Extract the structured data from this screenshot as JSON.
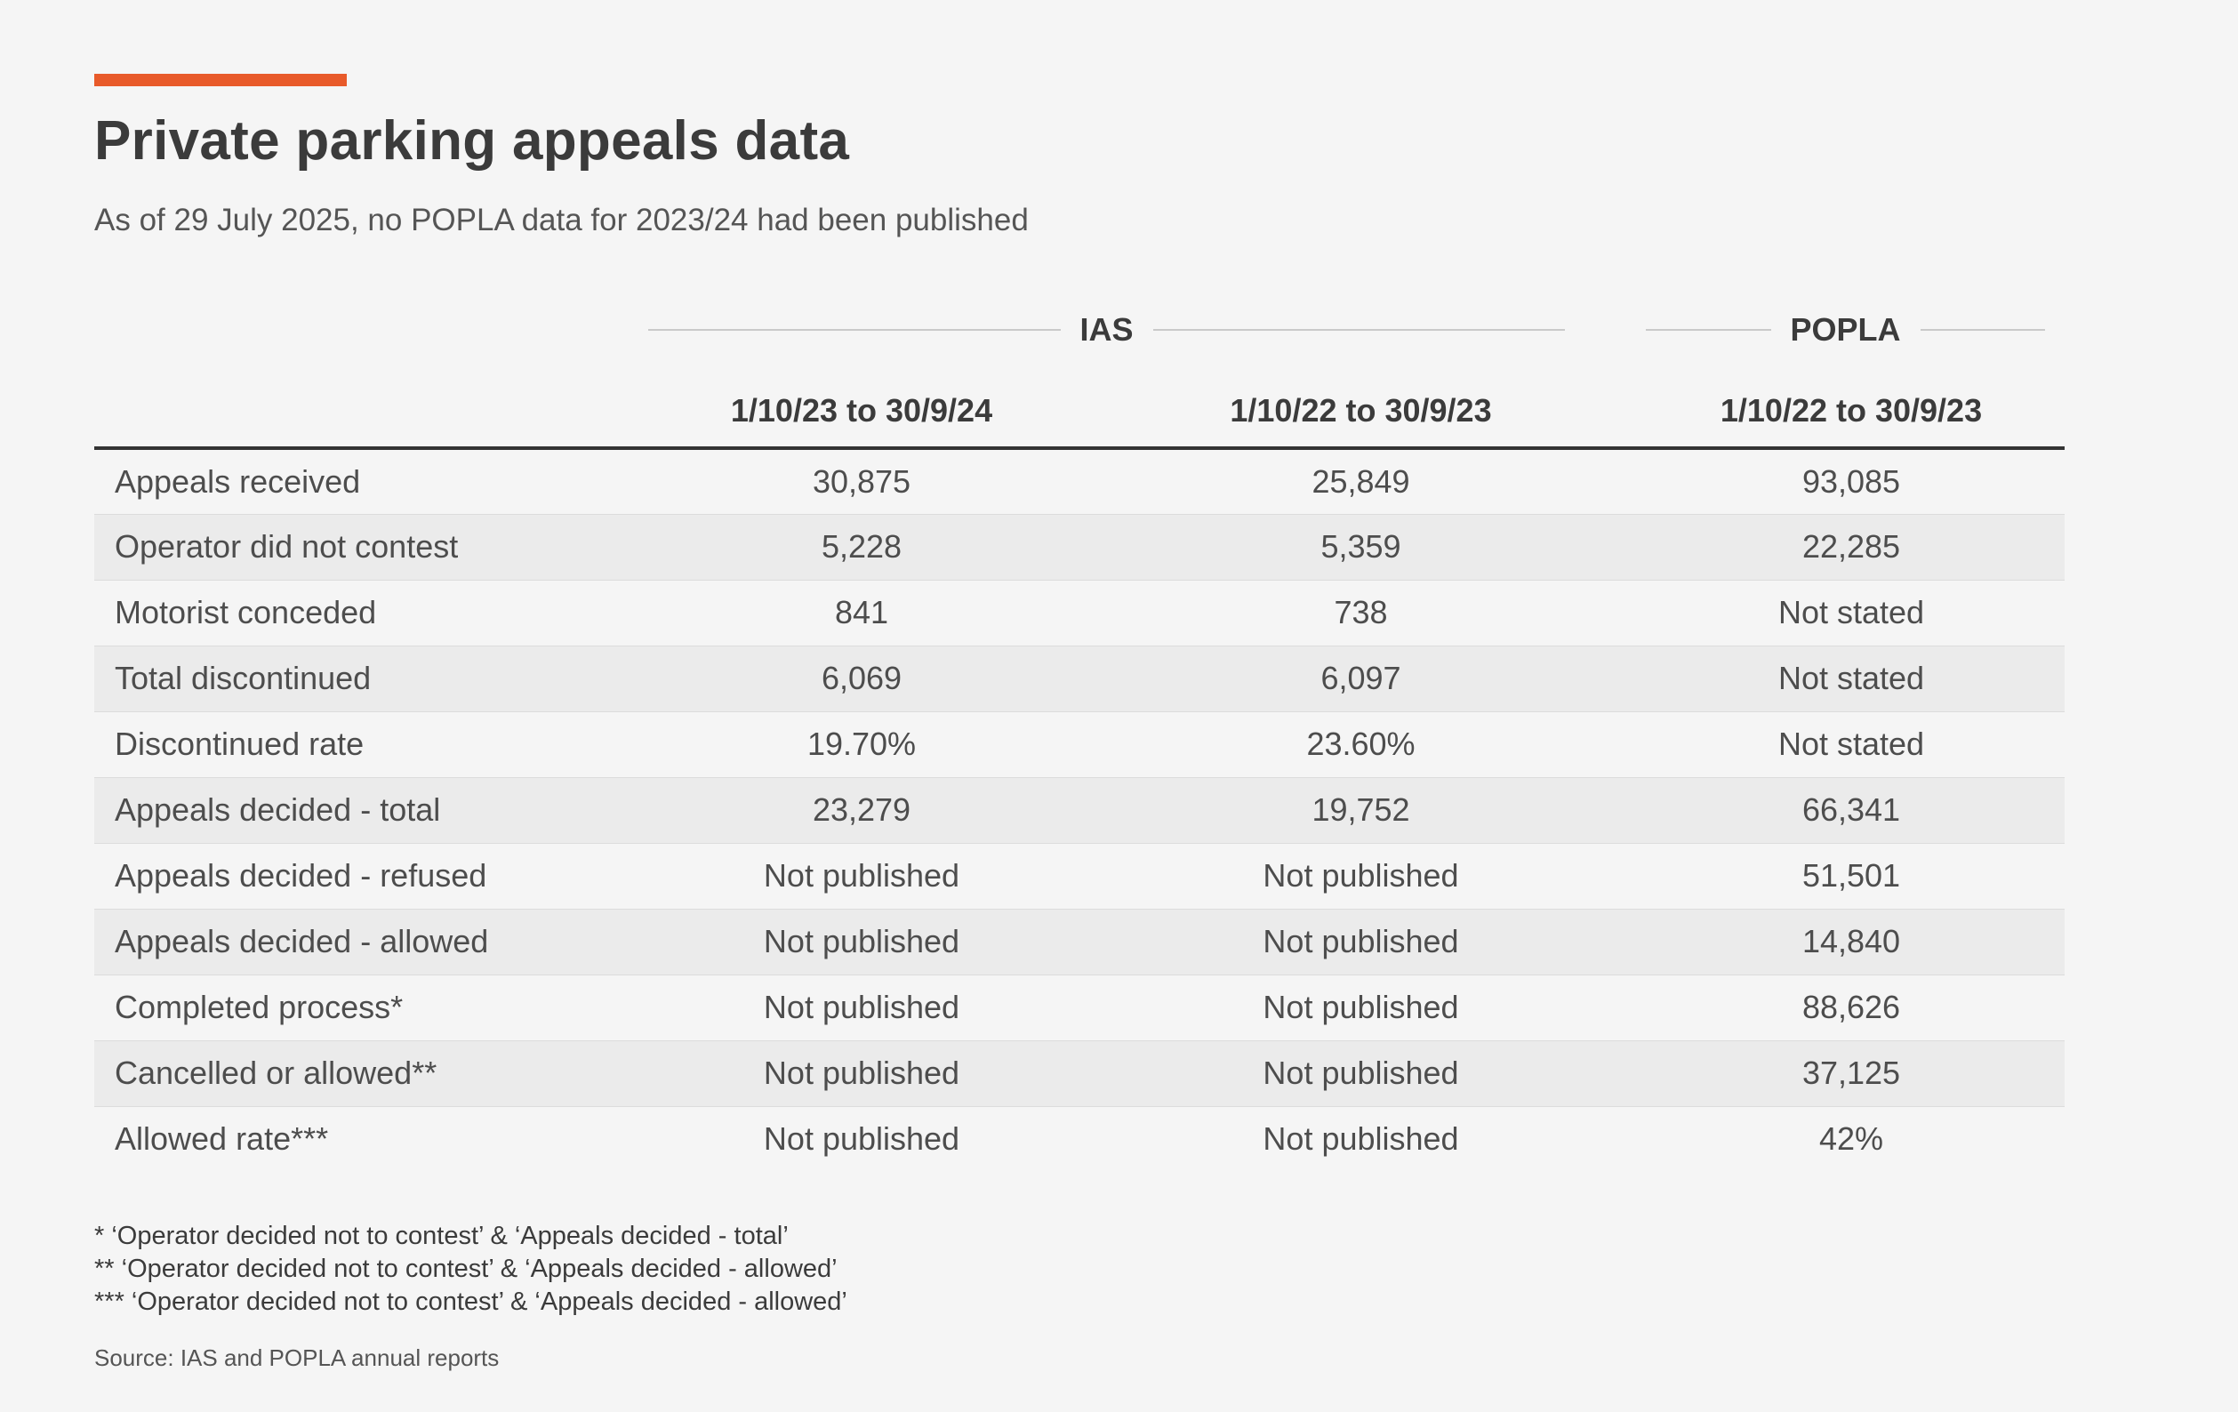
{
  "header": {
    "title": "Private parking appeals data",
    "subtitle": "As of 29 July 2025, no POPLA data for 2023/24 had been published"
  },
  "colors": {
    "accent": "#e85a2a",
    "alt_row": "#ebebeb",
    "background": "#f5f5f5"
  },
  "table": {
    "groups": {
      "ias": "IAS",
      "popla": "POPLA"
    },
    "columns": [
      "",
      "1/10/23 to 30/9/24",
      "1/10/22 to 30/9/23",
      "1/10/22 to 30/9/23"
    ],
    "rows": [
      [
        "Appeals received",
        "30,875",
        "25,849",
        "93,085"
      ],
      [
        "Operator did not contest",
        "5,228",
        "5,359",
        "22,285"
      ],
      [
        "Motorist conceded",
        "841",
        "738",
        "Not stated"
      ],
      [
        "Total discontinued",
        "6,069",
        "6,097",
        "Not stated"
      ],
      [
        "Discontinued rate",
        "19.70%",
        "23.60%",
        "Not stated"
      ],
      [
        "Appeals decided - total",
        "23,279",
        "19,752",
        "66,341"
      ],
      [
        "Appeals decided - refused",
        "Not published",
        "Not published",
        "51,501"
      ],
      [
        "Appeals decided - allowed",
        "Not published",
        "Not published",
        "14,840"
      ],
      [
        "Completed process*",
        "Not published",
        "Not published",
        "88,626"
      ],
      [
        "Cancelled or allowed**",
        "Not published",
        "Not published",
        "37,125"
      ],
      [
        "Allowed rate***",
        "Not published",
        "Not published",
        "42%"
      ]
    ]
  },
  "footnotes": [
    "* ‘Operator decided not to contest’ & ‘Appeals decided - total’",
    "** ‘Operator decided not to contest’ & ‘Appeals decided - allowed’",
    "*** ‘Operator decided not to contest’ & ‘Appeals decided - allowed’"
  ],
  "source": "Source: IAS and POPLA annual reports"
}
